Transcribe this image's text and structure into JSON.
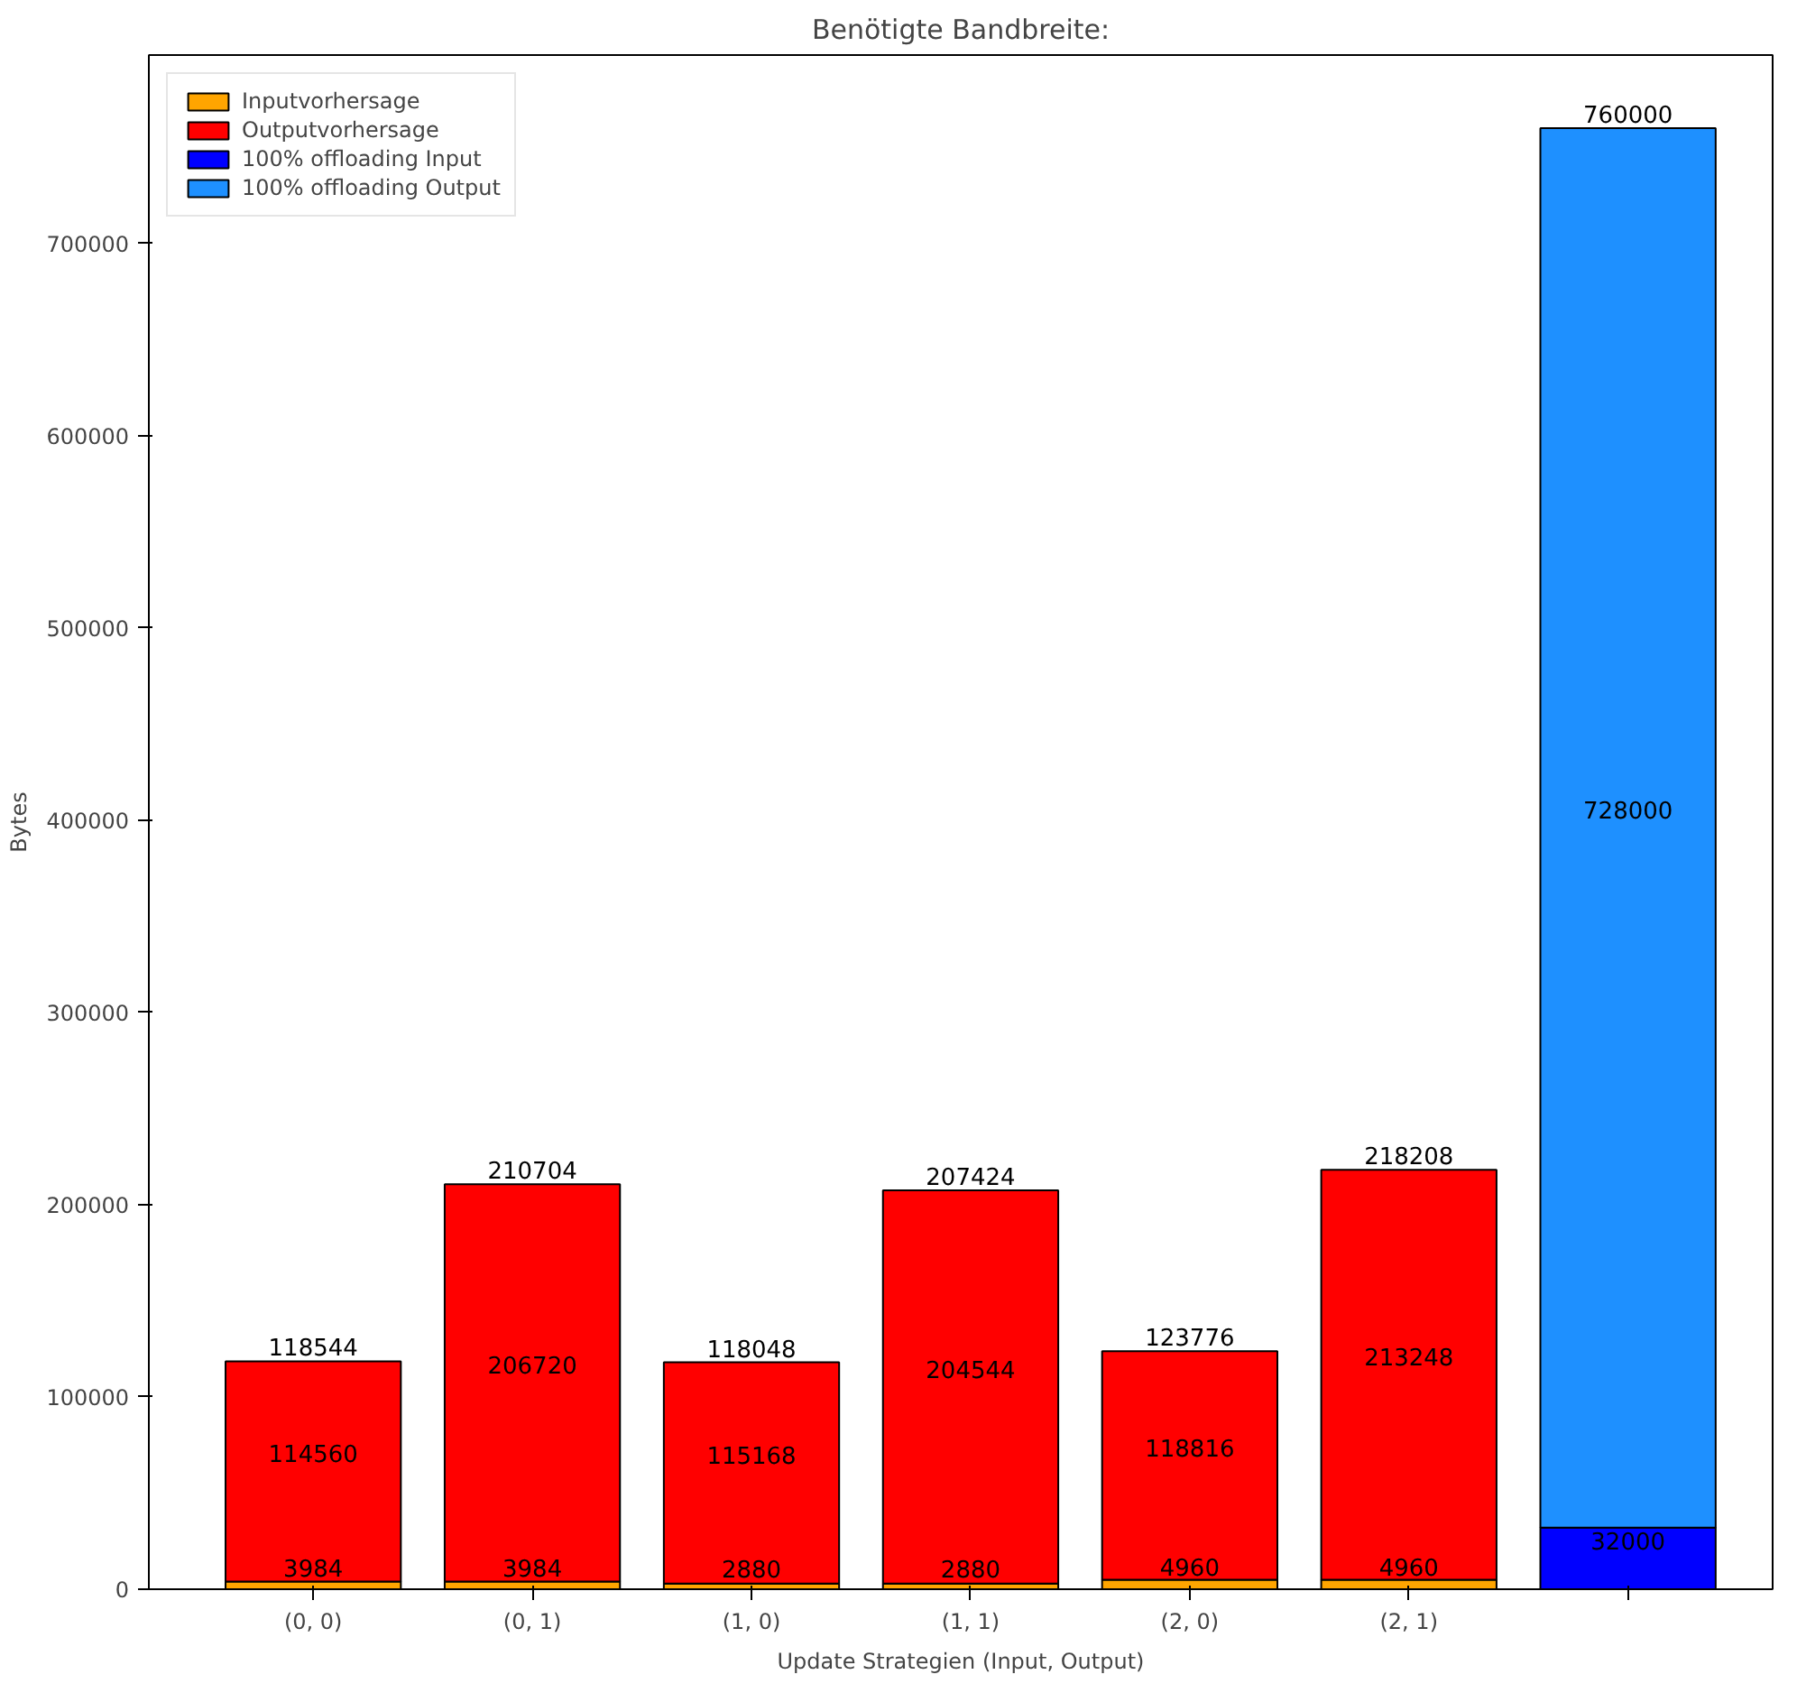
{
  "chart_data": {
    "type": "bar",
    "title": "Benötigte Bandbreite:",
    "xlabel": "Update Strategien (Input, Output)",
    "ylabel": "Bytes",
    "categories": [
      "(0, 0)",
      "(0, 1)",
      "(1, 0)",
      "(1, 1)",
      "(2, 0)",
      "(2, 1)",
      null
    ],
    "stacked": true,
    "series": [
      {
        "name": "Inputvorhersage",
        "color": "#ffa500",
        "values": [
          3984,
          3984,
          2880,
          2880,
          4960,
          4960,
          null
        ]
      },
      {
        "name": "Outputvorhersage",
        "color": "#ff0000",
        "values": [
          114560,
          206720,
          115168,
          204544,
          118816,
          213248,
          null
        ]
      },
      {
        "name": "100% offloading Input",
        "color": "#0000ff",
        "values": [
          null,
          null,
          null,
          null,
          null,
          null,
          32000
        ]
      },
      {
        "name": "100% offloading Output",
        "color": "#1e90ff",
        "values": [
          null,
          null,
          null,
          null,
          null,
          null,
          728000
        ]
      }
    ],
    "totals": [
      "118544",
      "210704",
      "118048",
      "207424",
      "123776",
      "218208",
      "760000"
    ],
    "data_labels": true,
    "ylim": [
      0,
      798000
    ],
    "yticks": [
      0,
      100000,
      200000,
      300000,
      400000,
      500000,
      600000,
      700000
    ],
    "grid": false,
    "legend": "top left"
  }
}
